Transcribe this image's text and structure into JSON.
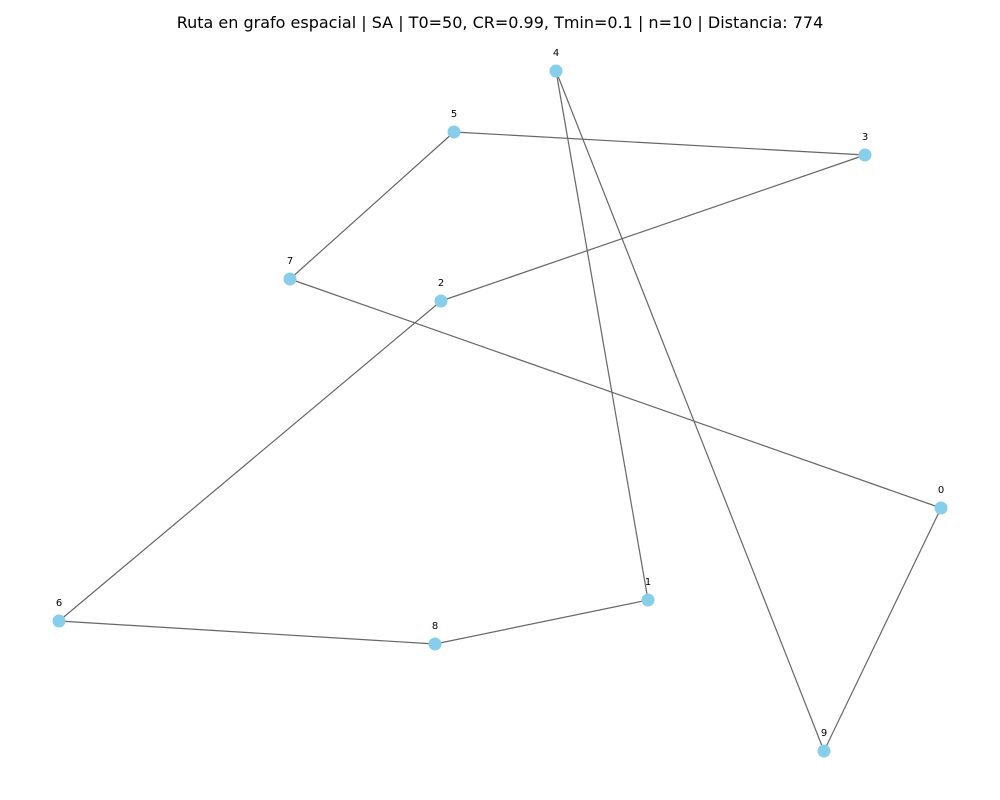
{
  "title": "Ruta en grafo espacial | SA | T0=50, CR=0.99, Tmin=0.1 | n=10 | Distancia: 774",
  "graph": {
    "node_color": "#87ceeb",
    "edge_color": "#666666",
    "label_color": "#000000",
    "nodes": [
      {
        "id": "0",
        "label": "0"
      },
      {
        "id": "1",
        "label": "1"
      },
      {
        "id": "2",
        "label": "2"
      },
      {
        "id": "3",
        "label": "3"
      },
      {
        "id": "4",
        "label": "4"
      },
      {
        "id": "5",
        "label": "5"
      },
      {
        "id": "6",
        "label": "6"
      },
      {
        "id": "7",
        "label": "7"
      },
      {
        "id": "8",
        "label": "8"
      },
      {
        "id": "9",
        "label": "9"
      }
    ],
    "edges": [
      [
        "0",
        "7"
      ],
      [
        "7",
        "5"
      ],
      [
        "5",
        "3"
      ],
      [
        "3",
        "2"
      ],
      [
        "2",
        "6"
      ],
      [
        "6",
        "8"
      ],
      [
        "8",
        "1"
      ],
      [
        "1",
        "4"
      ],
      [
        "4",
        "9"
      ],
      [
        "9",
        "0"
      ]
    ]
  }
}
